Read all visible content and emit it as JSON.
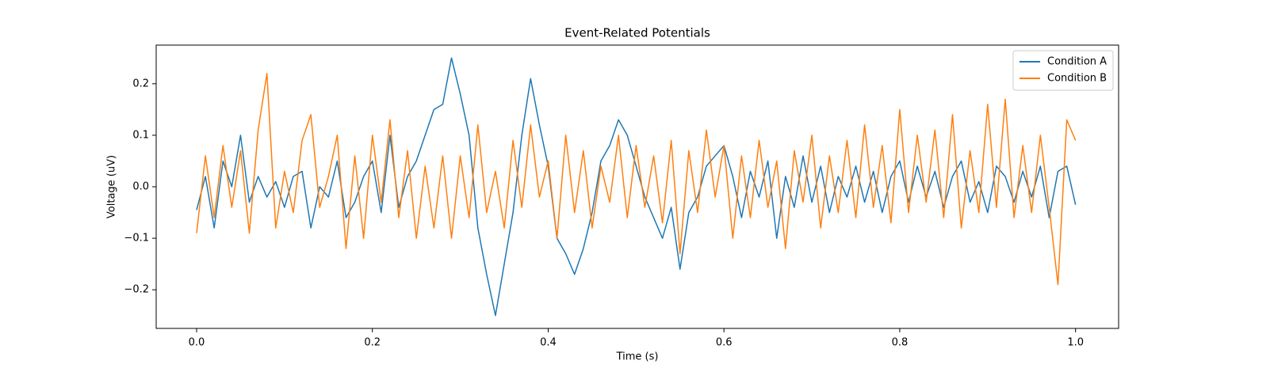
{
  "chart_data": {
    "type": "line",
    "title": "Event-Related Potentials",
    "xlabel": "Time (s)",
    "ylabel": "Voltage (uV)",
    "x": [
      0,
      0.01,
      0.02,
      0.03,
      0.04,
      0.05,
      0.06,
      0.07,
      0.08,
      0.09,
      0.1,
      0.11,
      0.12,
      0.13,
      0.14,
      0.15,
      0.16,
      0.17,
      0.18,
      0.19,
      0.2,
      0.21,
      0.22,
      0.23,
      0.24,
      0.25,
      0.26,
      0.27,
      0.28,
      0.29,
      0.3,
      0.31,
      0.32,
      0.33,
      0.34,
      0.35,
      0.36,
      0.37,
      0.38,
      0.39,
      0.4,
      0.41,
      0.42,
      0.43,
      0.44,
      0.45,
      0.46,
      0.47,
      0.48,
      0.49,
      0.5,
      0.51,
      0.52,
      0.53,
      0.54,
      0.55,
      0.56,
      0.57,
      0.58,
      0.59,
      0.6,
      0.61,
      0.62,
      0.63,
      0.64,
      0.65,
      0.66,
      0.67,
      0.68,
      0.69,
      0.7,
      0.71,
      0.72,
      0.73,
      0.74,
      0.75,
      0.76,
      0.77,
      0.78,
      0.79,
      0.8,
      0.81,
      0.82,
      0.83,
      0.84,
      0.85,
      0.86,
      0.87,
      0.88,
      0.89,
      0.9,
      0.91,
      0.92,
      0.93,
      0.94,
      0.95,
      0.96,
      0.97,
      0.98,
      0.99,
      1.0
    ],
    "series": [
      {
        "name": "Condition A",
        "color": "#1f77b4",
        "values": [
          -0.045,
          0.02,
          -0.08,
          0.05,
          0.0,
          0.1,
          -0.03,
          0.02,
          -0.02,
          0.01,
          -0.04,
          0.02,
          0.03,
          -0.08,
          0.0,
          -0.02,
          0.05,
          -0.06,
          -0.03,
          0.02,
          0.05,
          -0.05,
          0.1,
          -0.04,
          0.02,
          0.05,
          0.1,
          0.15,
          0.16,
          0.25,
          0.18,
          0.1,
          -0.08,
          -0.17,
          -0.25,
          -0.15,
          -0.05,
          0.1,
          0.21,
          0.12,
          0.04,
          -0.1,
          -0.13,
          -0.17,
          -0.12,
          -0.05,
          0.05,
          0.08,
          0.13,
          0.1,
          0.04,
          -0.02,
          -0.06,
          -0.1,
          -0.04,
          -0.16,
          -0.05,
          -0.02,
          0.04,
          0.06,
          0.08,
          0.02,
          -0.06,
          0.03,
          -0.02,
          0.05,
          -0.1,
          0.02,
          -0.04,
          0.06,
          -0.03,
          0.04,
          -0.05,
          0.02,
          -0.02,
          0.04,
          -0.03,
          0.03,
          -0.05,
          0.02,
          0.05,
          -0.03,
          0.04,
          -0.02,
          0.03,
          -0.04,
          0.02,
          0.05,
          -0.03,
          0.01,
          -0.05,
          0.04,
          0.02,
          -0.03,
          0.03,
          -0.02,
          0.04,
          -0.06,
          0.03,
          0.04,
          -0.035
        ]
      },
      {
        "name": "Condition B",
        "color": "#ff7f0e",
        "values": [
          -0.09,
          0.06,
          -0.06,
          0.08,
          -0.04,
          0.07,
          -0.09,
          0.11,
          0.22,
          -0.08,
          0.03,
          -0.05,
          0.09,
          0.14,
          -0.04,
          0.02,
          0.1,
          -0.12,
          0.06,
          -0.1,
          0.1,
          -0.03,
          0.13,
          -0.06,
          0.07,
          -0.1,
          0.04,
          -0.08,
          0.06,
          -0.1,
          0.06,
          -0.06,
          0.12,
          -0.05,
          0.03,
          -0.08,
          0.09,
          -0.04,
          0.12,
          -0.02,
          0.05,
          -0.1,
          0.1,
          -0.05,
          0.07,
          -0.08,
          0.04,
          -0.03,
          0.1,
          -0.06,
          0.08,
          -0.04,
          0.06,
          -0.07,
          0.09,
          -0.13,
          0.07,
          -0.05,
          0.11,
          -0.02,
          0.08,
          -0.1,
          0.06,
          -0.06,
          0.09,
          -0.04,
          0.05,
          -0.12,
          0.07,
          -0.03,
          0.1,
          -0.08,
          0.06,
          -0.05,
          0.09,
          -0.06,
          0.12,
          -0.04,
          0.08,
          -0.07,
          0.15,
          -0.05,
          0.1,
          -0.03,
          0.11,
          -0.06,
          0.14,
          -0.08,
          0.07,
          -0.05,
          0.16,
          -0.04,
          0.17,
          -0.06,
          0.08,
          -0.05,
          0.1,
          -0.04,
          -0.19,
          0.13,
          0.09
        ]
      }
    ],
    "xlim": [
      -0.046,
      1.049
    ],
    "ylim": [
      -0.275,
      0.275
    ],
    "xticks": [
      {
        "value": 0,
        "label": "0.0"
      },
      0.2,
      0.4,
      0.6,
      0.8,
      {
        "value": 1,
        "label": "1.0"
      }
    ],
    "yticks": [
      {
        "value": -0.2,
        "label": "−0.2"
      },
      {
        "value": -0.1,
        "label": "−0.1"
      },
      {
        "value": 0,
        "label": "0.0"
      },
      0.1,
      0.2
    ],
    "legend": "upper right",
    "grid": false
  }
}
